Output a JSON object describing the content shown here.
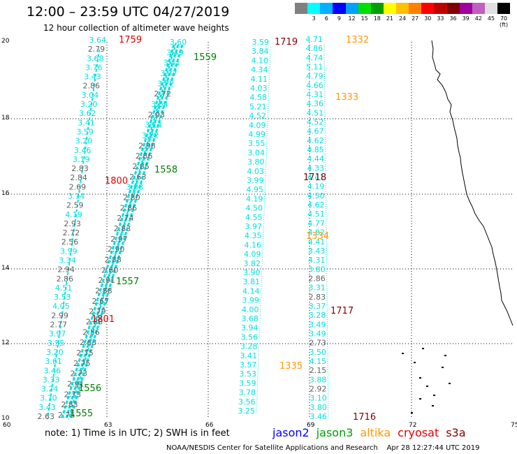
{
  "title": "12:00 – 23:59 UTC 04/27/2019",
  "subtitle": "12 hour collection of altimeter wave heights",
  "colorbar": {
    "colors": [
      "#808080",
      "#00ffff",
      "#00b0ff",
      "#0000ff",
      "#00a0ff",
      "#00e000",
      "#00a000",
      "#ffff00",
      "#ffc000",
      "#ff8000",
      "#ff0000",
      "#c00000",
      "#800000",
      "#a000a0",
      "#c060c0",
      "#e0e0e0",
      "#000000"
    ],
    "labels": [
      "",
      "3",
      "6",
      "9",
      "12",
      "15",
      "18",
      "21",
      "24",
      "27",
      "30",
      "33",
      "36",
      "39",
      "42",
      "45",
      "70 (ft)"
    ]
  },
  "axes": {
    "x_ticks": [
      "60",
      "63",
      "66",
      "69",
      "72",
      "75"
    ],
    "y_ticks": [
      "10",
      "12",
      "14",
      "16",
      "18",
      "20"
    ]
  },
  "map": {
    "tracks": [
      {
        "sat": "jason3",
        "color": "#00e0e0",
        "values": [
          "3.64",
          "2.79",
          "3.68",
          "3.76",
          "3.43",
          "2.86",
          "3.04",
          "3.20",
          "3.62",
          "3.41",
          "3.59",
          "3.20",
          "3.46",
          "3.19",
          "2.83",
          "2.84",
          "2.69",
          "3.14",
          "2.59",
          "4.19",
          "2.93",
          "2.72",
          "2.56",
          "3.99",
          "3.34",
          "2.94",
          "2.86",
          "4.51",
          "3.53",
          "4.05",
          "2.99",
          "2.77",
          "3.97",
          "3.55",
          "3.20",
          "3.61",
          "3.46",
          "3.33",
          "3.24",
          "3.70",
          "3.43",
          "2.63"
        ]
      },
      {
        "sat": "jason3-diag",
        "color": "#00e0e0",
        "values": [
          "3.60",
          "3.49",
          "3.41",
          "3.37",
          "3.22",
          "2.72",
          "3.04",
          "2.93",
          "3.14",
          "3.22",
          "2.98",
          "2.86",
          "2.85",
          "2.63",
          "3.08",
          "2.80",
          "2.86",
          "2.74",
          "2.83",
          "2.97",
          "2.90",
          "2.88",
          "2.60",
          "2.91",
          "2.88",
          "2.67",
          "2.79",
          "2.80",
          "2.56",
          "2.63",
          "2.75",
          "2.75",
          "2.73",
          "2.91",
          "2.73",
          "2.83",
          "2.75"
        ]
      },
      {
        "sat": "jason3-mid",
        "color": "#00e0e0",
        "values": [
          "3.59",
          "3.84",
          "4.10",
          "4.34",
          "4.11",
          "4.03",
          "4.58",
          "5.21",
          "4.52",
          "4.09",
          "4.99",
          "3.55",
          "3.04",
          "3.80",
          "4.03",
          "3.99",
          "4.95",
          "4.19",
          "4.50",
          "4.55",
          "3.97",
          "4.35",
          "4.16",
          "4.09",
          "3.82",
          "3.90",
          "3.81",
          "4.14",
          "3.99",
          "4.00",
          "3.68",
          "3.94",
          "3.56",
          "3.28",
          "3.41",
          "3.57",
          "3.53",
          "3.59",
          "3.78",
          "3.56",
          "3.25"
        ]
      },
      {
        "sat": "jason3-right",
        "color": "#00e0e0",
        "values": [
          "4.71",
          "4.86",
          "4.74",
          "5.11",
          "4.79",
          "4.66",
          "4.31",
          "4.36",
          "4.51",
          "4.52",
          "4.67",
          "4.62",
          "4.85",
          "4.44",
          "4.33",
          "4.41",
          "4.19",
          "4.50",
          "4.62",
          "4.51",
          "4.77",
          "4.82",
          "4.41",
          "3.43",
          "4.31",
          "3.80",
          "2.86",
          "3.31",
          "2.83",
          "3.37",
          "3.28",
          "3.49",
          "3.49",
          "2.73",
          "3.50",
          "4.15",
          "2.15",
          "3.88",
          "2.92",
          "3.10",
          "3.80",
          "3.46"
        ]
      }
    ],
    "time_labels": [
      {
        "text": "1759",
        "color": "#e00000"
      },
      {
        "text": "1559",
        "color": "#008000"
      },
      {
        "text": "1719",
        "color": "#800000"
      },
      {
        "text": "1332",
        "color": "#ff9900"
      },
      {
        "text": "1333",
        "color": "#ff9900"
      },
      {
        "text": "1558",
        "color": "#008000"
      },
      {
        "text": "1800",
        "color": "#e00000"
      },
      {
        "text": "1718",
        "color": "#800000"
      },
      {
        "text": "1334",
        "color": "#ff9900"
      },
      {
        "text": "1557",
        "color": "#008000"
      },
      {
        "text": "1717",
        "color": "#800000"
      },
      {
        "text": "1801",
        "color": "#e00000"
      },
      {
        "text": "1335",
        "color": "#ff9900"
      },
      {
        "text": "1556",
        "color": "#008000"
      },
      {
        "text": "1555",
        "color": "#008000"
      },
      {
        "text": "1716",
        "color": "#800000"
      }
    ]
  },
  "note": "note:  1) Time is in UTC;  2) SWH is in feet",
  "legend": [
    {
      "label": "jason2",
      "color": "#0000ff"
    },
    {
      "label": "jason3",
      "color": "#00a000"
    },
    {
      "label": "altika",
      "color": "#ff9900"
    },
    {
      "label": "cryosat",
      "color": "#e00000"
    },
    {
      "label": "s3a",
      "color": "#800000"
    }
  ],
  "credit": "NOAA/NESDIS Center for Satellite Applications and Research    Apr 28 12:27:44 UTC 2019"
}
